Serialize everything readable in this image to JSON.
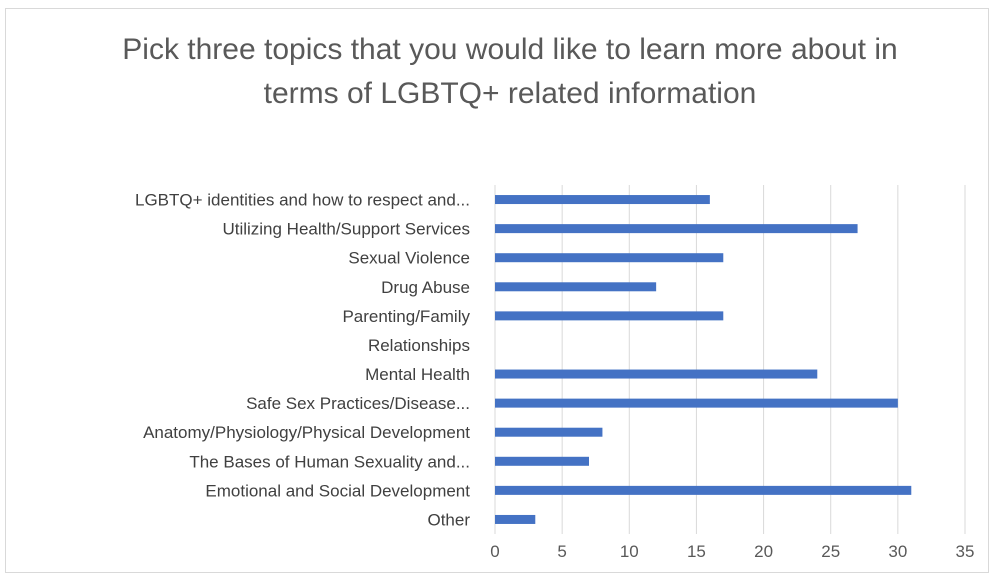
{
  "chart_data": {
    "type": "bar",
    "orientation": "horizontal",
    "title": "Pick three topics that you would like to learn more about in terms of LGBTQ+ related information",
    "categories": [
      "LGBTQ+ identities and how to respect and...",
      "Utilizing Health/Support Services",
      "Sexual Violence",
      "Drug Abuse",
      "Parenting/Family",
      "Relationships",
      "Mental Health",
      "Safe Sex Practices/Disease...",
      "Anatomy/Physiology/Physical Development",
      "The Bases of Human Sexuality and...",
      "Emotional and Social Development",
      "Other"
    ],
    "values": [
      16,
      27,
      17,
      12,
      17,
      0,
      24,
      30,
      8,
      7,
      31,
      3
    ],
    "xlim": [
      0,
      35
    ],
    "xticks": [
      "0",
      "5",
      "10",
      "15",
      "20",
      "25",
      "30",
      "35"
    ],
    "grid": true,
    "legend": "none",
    "bar_color": "#4472c4",
    "grid_color": "#d9d9d9"
  }
}
